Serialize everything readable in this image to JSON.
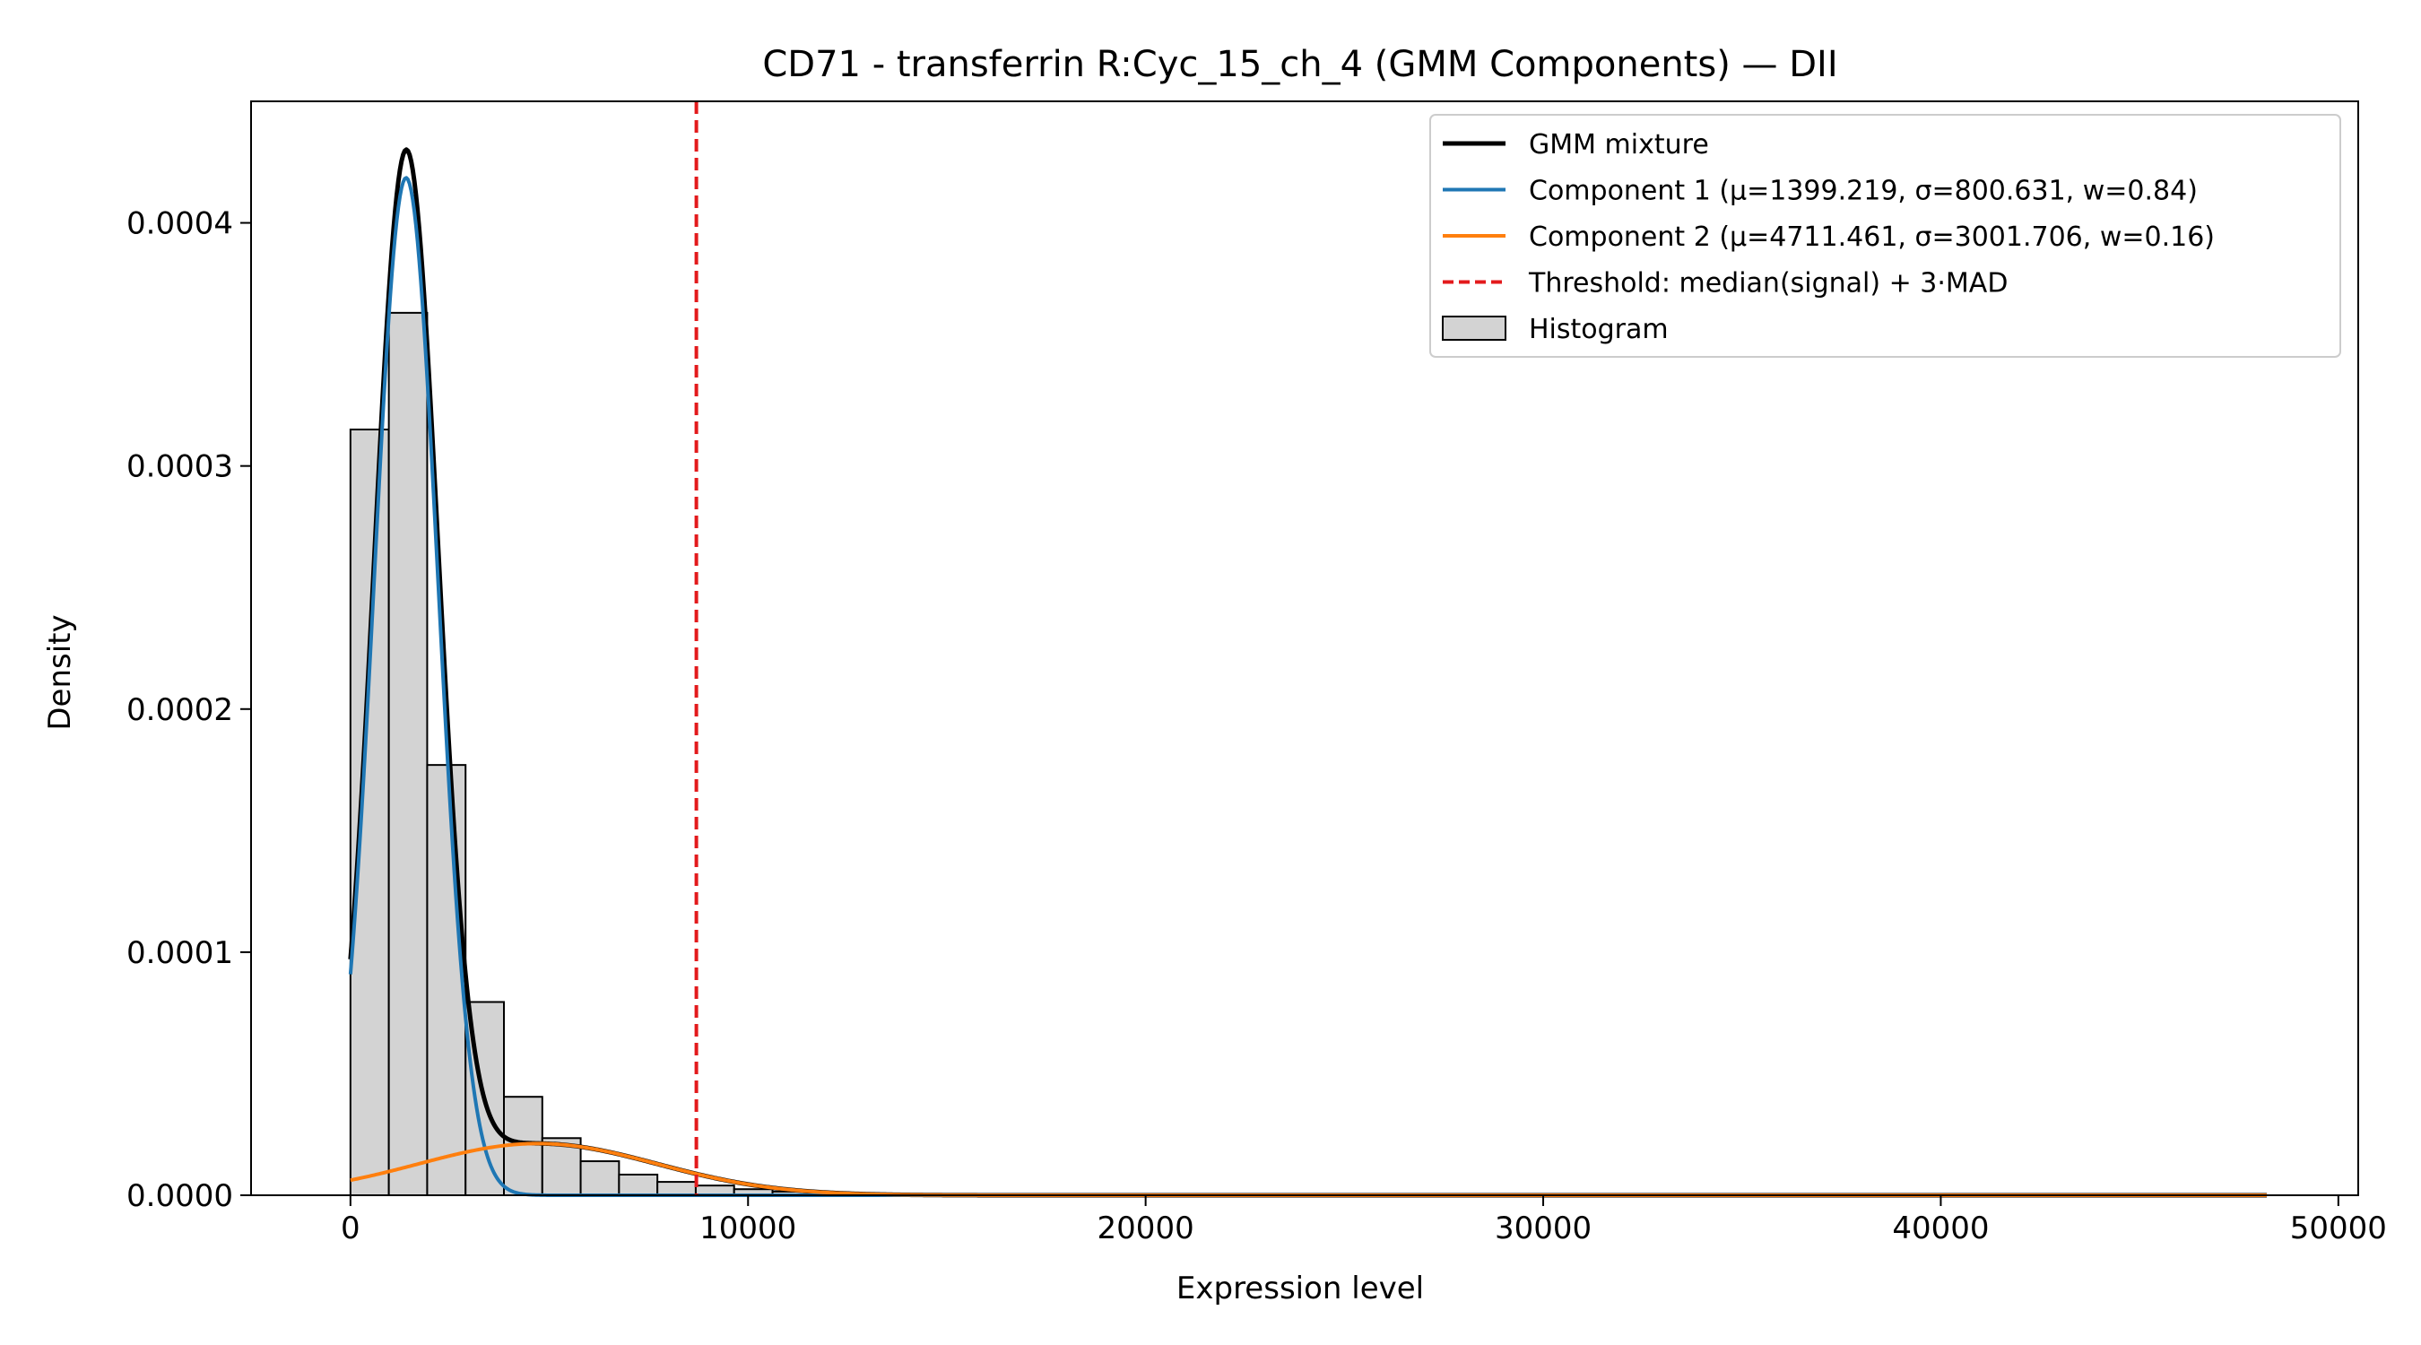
{
  "chart_data": {
    "type": "histogram+line",
    "title": "CD71 - transferrin R:Cyc_15_ch_4 (GMM Components) — DII",
    "xlabel": "Expression level",
    "ylabel": "Density",
    "xlim": [
      -2500,
      50500
    ],
    "ylim": [
      0,
      0.00045
    ],
    "x_ticks": [
      0,
      10000,
      20000,
      30000,
      40000,
      50000
    ],
    "x_tick_labels": [
      "0",
      "10000",
      "20000",
      "30000",
      "40000",
      "50000"
    ],
    "y_ticks": [
      0,
      0.0001,
      0.0002,
      0.0003,
      0.0004
    ],
    "y_tick_labels": [
      "0.0000",
      "0.0001",
      "0.0002",
      "0.0003",
      "0.0004"
    ],
    "histogram": {
      "name": "Histogram",
      "bin_width": 965,
      "bin_start": 0,
      "values": [
        0.000315,
        0.000363,
        0.000177,
        7.95e-05,
        4.05e-05,
        2.35e-05,
        1.4e-05,
        8.5e-06,
        5.5e-06,
        4e-06,
        2.5e-06,
        1.5e-06,
        1e-06,
        7e-07,
        5e-07,
        4e-07,
        3e-07,
        2e-07,
        2e-07,
        2e-07
      ],
      "color": "#d3d3d3",
      "edge_color": "#000000"
    },
    "components": [
      {
        "name": "Component 1 (μ=1399.219, σ=800.631, w=0.84)",
        "mu": 1399.219,
        "sigma": 800.631,
        "weight": 0.84,
        "color": "#1f77b4"
      },
      {
        "name": "Component 2 (μ=4711.461, σ=3001.706, w=0.16)",
        "mu": 4711.461,
        "sigma": 3001.706,
        "weight": 0.16,
        "color": "#ff7f0e"
      }
    ],
    "mixture": {
      "name": "GMM mixture",
      "color": "#000000"
    },
    "curve_range": [
      0,
      48200
    ],
    "threshold": {
      "name": "Threshold: median(signal) + 3·MAD",
      "x": 8700,
      "color": "#e31a1c"
    },
    "legend_position": "top-right"
  }
}
